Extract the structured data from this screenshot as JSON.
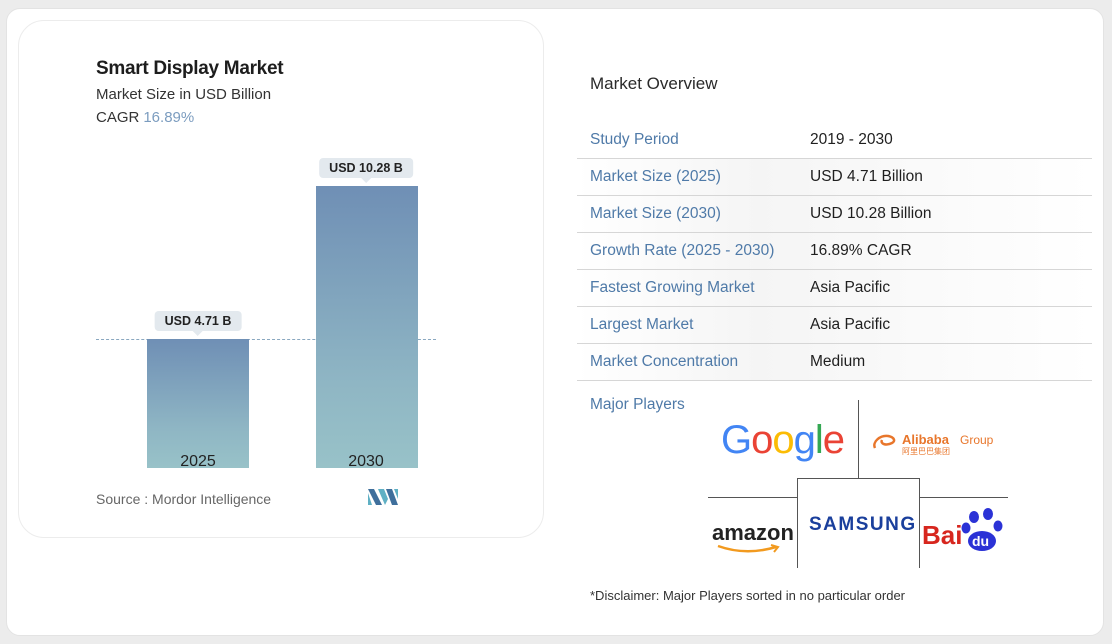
{
  "chart_data": {
    "type": "bar",
    "title": "Smart Display Market",
    "subtitle": "Market Size in USD Billion",
    "cagr_label": "CAGR",
    "cagr_value": "16.89%",
    "categories": [
      "2025",
      "2030"
    ],
    "values": [
      4.71,
      10.28
    ],
    "value_labels": [
      "USD 4.71 B",
      "USD 10.28 B"
    ],
    "xlabel": "",
    "ylabel": "Market Size (USD Billion)",
    "reference_line": 4.71,
    "grid": false,
    "colors": {
      "bar_top": "#6f8fb5",
      "bar_bottom": "#98c2c8",
      "accent": "#7b9cbf"
    },
    "source": "Source :  Mordor Intelligence"
  },
  "overview": {
    "title": "Market Overview",
    "rows": [
      {
        "key": "Study Period",
        "value": "2019 - 2030"
      },
      {
        "key": "Market Size (2025)",
        "value": "USD 4.71 Billion"
      },
      {
        "key": "Market Size (2030)",
        "value": "USD 10.28 Billion"
      },
      {
        "key": "Growth Rate (2025 - 2030)",
        "value": "16.89% CAGR"
      },
      {
        "key": "Fastest Growing Market",
        "value": "Asia Pacific"
      },
      {
        "key": "Largest Market",
        "value": "Asia Pacific"
      },
      {
        "key": "Market Concentration",
        "value": "Medium"
      }
    ],
    "players_label": "Major Players",
    "players": {
      "google": "Google",
      "alibaba": "Alibaba",
      "alibaba_group": "Group",
      "alibaba_cn": "阿里巴巴集团",
      "amazon": "amazon",
      "samsung": "SAMSUNG",
      "baidu": "Bai",
      "baidu_du": "du"
    },
    "disclaimer": "*Disclaimer: Major Players sorted in no particular order"
  }
}
